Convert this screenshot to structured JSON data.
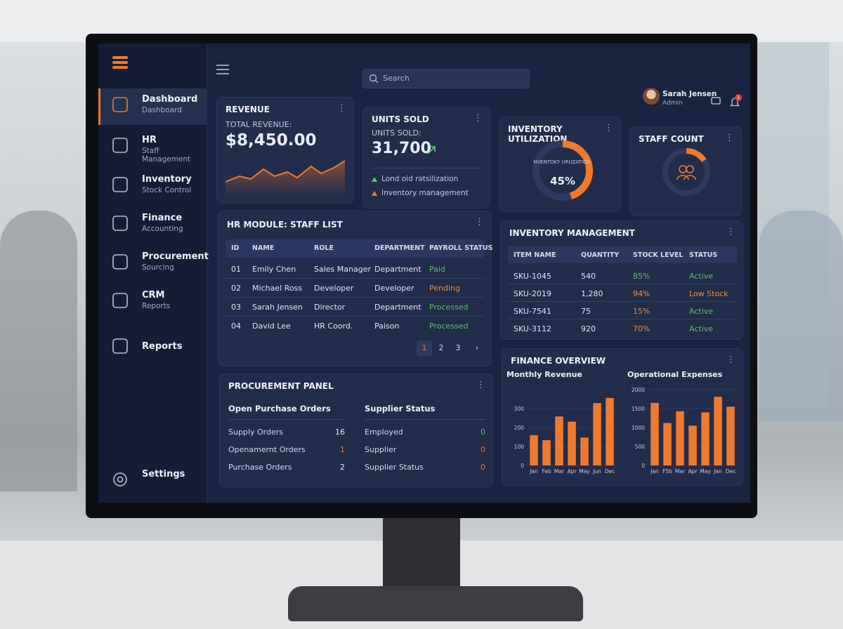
{
  "sidebar": {
    "items": [
      {
        "title": "Dashboard",
        "subtitle": "Dashboard"
      },
      {
        "title": "HR",
        "subtitle": "Staff Management"
      },
      {
        "title": "Inventory",
        "subtitle": "Stock Control"
      },
      {
        "title": "Finance",
        "subtitle": "Accounting"
      },
      {
        "title": "Procurement",
        "subtitle": "Sourcing"
      },
      {
        "title": "CRM",
        "subtitle": "Reports"
      },
      {
        "title": "Reports"
      }
    ],
    "settings": "Settings"
  },
  "topbar": {
    "search": "Search",
    "user": {
      "name": "Sarah Jensen",
      "role": "Admin"
    },
    "notifications": "1"
  },
  "revenue": {
    "title": "REVENUE",
    "label": "TOTAL REVENUE:",
    "value": "$8,450.00"
  },
  "units_sold": {
    "title": "UNITS SOLD",
    "label": "UNITS SOLD:",
    "value": "31,700",
    "notes": [
      "Lond oid rətsilization",
      "Inventory management"
    ],
    "note_colors": [
      "#5cc26a",
      "#f07a2c"
    ]
  },
  "inventory_utilization": {
    "title": "INVENTORY UTILIZATION",
    "label": "NVENTOKY URUZATION:",
    "value": 45,
    "value_label": "45%",
    "color": "#f07a2c"
  },
  "staff_count": {
    "title": "STAFF COUNT"
  },
  "staff_list": {
    "title": "HR MODULE: STAFF LIST",
    "columns": [
      "ID",
      "NAME",
      "ROLE",
      "DEPARTMENT",
      "PAYROLL STATUS"
    ],
    "rows": [
      [
        "01",
        "Emily Chen",
        "Sales Manager",
        "Department",
        "Paid"
      ],
      [
        "02",
        "Michael Ross",
        "Developer",
        "Developer",
        "Pending"
      ],
      [
        "03",
        "Sarah Jensen",
        "Director",
        "Department",
        "Processed"
      ],
      [
        "04",
        "David Lee",
        "HR Coord.",
        "Paison",
        "Processed"
      ]
    ],
    "status_colors": [
      "#5cc26a",
      "#f08a3c",
      "#5cc26a",
      "#5cc26a"
    ],
    "pages": [
      "1",
      "2",
      "3"
    ]
  },
  "inventory_management": {
    "title": "INVENTORY MANAGEMENT",
    "columns": [
      "ITEM NAME",
      "QUANTITY",
      "STOCK LEVEL",
      "STATUS"
    ],
    "rows": [
      [
        "SKU-1045",
        "540",
        "85%",
        "Active"
      ],
      [
        "SKU-2019",
        "1,280",
        "94%",
        "Low Stock"
      ],
      [
        "SKU-7541",
        "75",
        "15%",
        "Active"
      ],
      [
        "SKU-3112",
        "920",
        "70%",
        "Active"
      ]
    ],
    "level_colors": [
      "#5cc26a",
      "#f08a3c",
      "#f08a3c",
      "#f08a3c"
    ],
    "status_colors": [
      "#5cc26a",
      "#f08a3c",
      "#5cc26a",
      "#5cc26a"
    ]
  },
  "procurement": {
    "title": "PROCUREMENT PANEL",
    "orders": {
      "title": "Open Purchase Orders",
      "rows": [
        [
          "Supply Orders",
          "16"
        ],
        [
          "Openamernt Orders",
          "1"
        ],
        [
          "Purchase Orders",
          "2"
        ]
      ],
      "value_colors": [
        "#e8ecf5",
        "#f07a2c",
        "#e8ecf5"
      ]
    },
    "supplier": {
      "title": "Supplier Status",
      "rows": [
        [
          "Employed",
          "0"
        ],
        [
          "Supplier",
          "0"
        ],
        [
          "Supplier Status",
          "0"
        ]
      ],
      "value_colors": [
        "#5cc26a",
        "#f07a2c",
        "#f07a2c"
      ]
    }
  },
  "finance": {
    "title": "FINANCE OVERVIEW"
  },
  "chart_data": [
    {
      "type": "bar",
      "title": "Monthly Revenue",
      "categories": [
        "Jan",
        "Feb",
        "Mar",
        "Apr",
        "May",
        "Jun",
        "Dec"
      ],
      "values": [
        160,
        133,
        258,
        231,
        147,
        329,
        356
      ],
      "color": "#f07a2c",
      "ylim": [
        0,
        400
      ],
      "yticks": [
        0,
        100,
        200,
        300
      ],
      "grid": true
    },
    {
      "type": "bar",
      "title": "Operational Expenses",
      "categories": [
        "Jan",
        "F5b",
        "Mar",
        "Apr",
        "May",
        "Jan",
        "Dec"
      ],
      "values": [
        1650,
        1120,
        1430,
        1050,
        1400,
        1810,
        1550
      ],
      "color": "#f07a2c",
      "ylim": [
        0,
        2000
      ],
      "yticks": [
        0,
        500,
        1000,
        1500,
        2000
      ],
      "grid": true
    }
  ]
}
